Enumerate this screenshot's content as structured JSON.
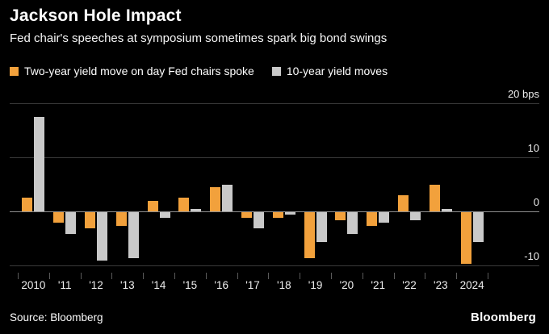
{
  "header": {
    "title": "Jackson Hole Impact",
    "subtitle": "Fed chair's speeches at symposium sometimes spark big bond swings"
  },
  "legend": [
    {
      "label": "Two-year yield move on day Fed chairs spoke",
      "color": "#f2a13c"
    },
    {
      "label": "10-year yield moves",
      "color": "#c9c9c9"
    }
  ],
  "chart_data": {
    "type": "bar",
    "title": "Jackson Hole Impact",
    "subtitle": "Fed chair's speeches at symposium sometimes spark big bond swings",
    "categories": [
      "2010",
      "'11",
      "'12",
      "'13",
      "'14",
      "'15",
      "'16",
      "'17",
      "'18",
      "'19",
      "'20",
      "'21",
      "'22",
      "'23",
      "2024"
    ],
    "series": [
      {
        "name": "Two-year yield move on day Fed chairs spoke",
        "color": "#f2a13c",
        "values": [
          2.5,
          -2,
          -3,
          -2.5,
          2,
          2.5,
          4.5,
          -1,
          -1,
          -8.5,
          -1.5,
          -2.5,
          3,
          5,
          -9.5
        ]
      },
      {
        "name": "10-year yield moves",
        "color": "#c9c9c9",
        "values": [
          17.5,
          -4,
          -9,
          -8.5,
          -1,
          0.5,
          5,
          -3,
          -0.5,
          -5.5,
          -4,
          -2,
          -1.5,
          0.5,
          -5.5
        ]
      }
    ],
    "xlabel": "",
    "ylabel": "bps",
    "ylim": [
      -12,
      20
    ],
    "grid": true,
    "legend_position": "top-left",
    "yticks": [
      {
        "value": 20,
        "label": "20 bps"
      },
      {
        "value": 10,
        "label": "10"
      },
      {
        "value": 0,
        "label": "0"
      },
      {
        "value": -10,
        "label": "-10"
      }
    ]
  },
  "footer": {
    "source": "Source: Bloomberg",
    "brand": "Bloomberg"
  }
}
